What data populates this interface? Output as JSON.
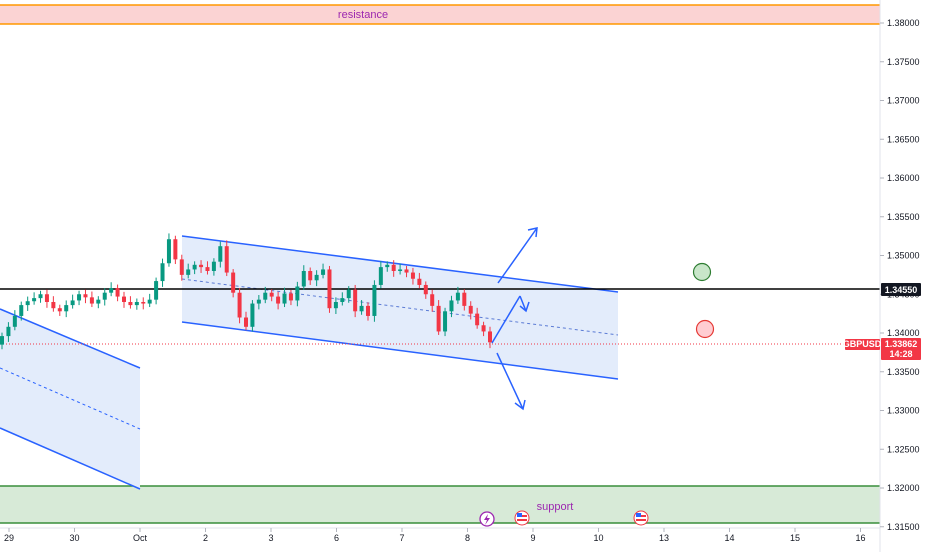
{
  "chart_data": {
    "type": "candlestick",
    "symbol": "GBPUSD",
    "price_axis": {
      "ticks": [
        "1.38000",
        "1.37500",
        "1.37000",
        "1.36500",
        "1.36000",
        "1.35500",
        "1.35000",
        "1.34500",
        "1.34000",
        "1.33500",
        "1.33000",
        "1.32500",
        "1.32000",
        "1.31500"
      ],
      "range": [
        1.3145,
        1.3835
      ]
    },
    "time_axis": {
      "ticks": [
        "29",
        "30",
        "Oct",
        "2",
        "3",
        "6",
        "7",
        "8",
        "9",
        "10",
        "13",
        "14",
        "15",
        "16"
      ]
    },
    "zones": {
      "resistance": {
        "label": "resistance",
        "from": 1.38,
        "to": 1.3825,
        "color": "#f7c6c6",
        "line": "#ff9800"
      },
      "support": {
        "label": "support",
        "from": 1.3152,
        "to": 1.32,
        "color": "#d6ebd6",
        "line": "#388e3c"
      }
    },
    "horizontal_level": {
      "value": 1.3455,
      "label": "1.34550"
    },
    "current_price": {
      "symbol": "GBPUSD",
      "value": "1.33862",
      "countdown": "14:28",
      "color": "#f23645"
    },
    "candles_close": [
      1.3396,
      1.3408,
      1.3422,
      1.3436,
      1.3441,
      1.3445,
      1.345,
      1.344,
      1.3432,
      1.3428,
      1.3436,
      1.3442,
      1.345,
      1.3446,
      1.3438,
      1.3443,
      1.3452,
      1.3458,
      1.3447,
      1.344,
      1.3436,
      1.344,
      1.3438,
      1.3443,
      1.3467,
      1.349,
      1.3521,
      1.3495,
      1.3475,
      1.3482,
      1.3488,
      1.3485,
      1.348,
      1.3492,
      1.3512,
      1.3478,
      1.3452,
      1.342,
      1.3408,
      1.3438,
      1.3443,
      1.3452,
      1.3447,
      1.3438,
      1.3451,
      1.3442,
      1.346,
      1.348,
      1.3468,
      1.3475,
      1.3482,
      1.3432,
      1.344,
      1.3445,
      1.3456,
      1.3428,
      1.3435,
      1.3422,
      1.3462,
      1.3485,
      1.3488,
      1.348,
      1.3482,
      1.3478,
      1.347,
      1.3462,
      1.345,
      1.3435,
      1.3402,
      1.3428,
      1.3442,
      1.3452,
      1.3435,
      1.3425,
      1.341,
      1.3402,
      1.3388
    ],
    "colors": {
      "up": "#089981",
      "down": "#f23645",
      "channel": "#2962ff",
      "channel_fill": "#e3ecfb",
      "level": "#000000"
    },
    "markers": [
      {
        "type": "circle",
        "color": "green"
      },
      {
        "type": "circle",
        "color": "red"
      }
    ],
    "grid": false
  }
}
